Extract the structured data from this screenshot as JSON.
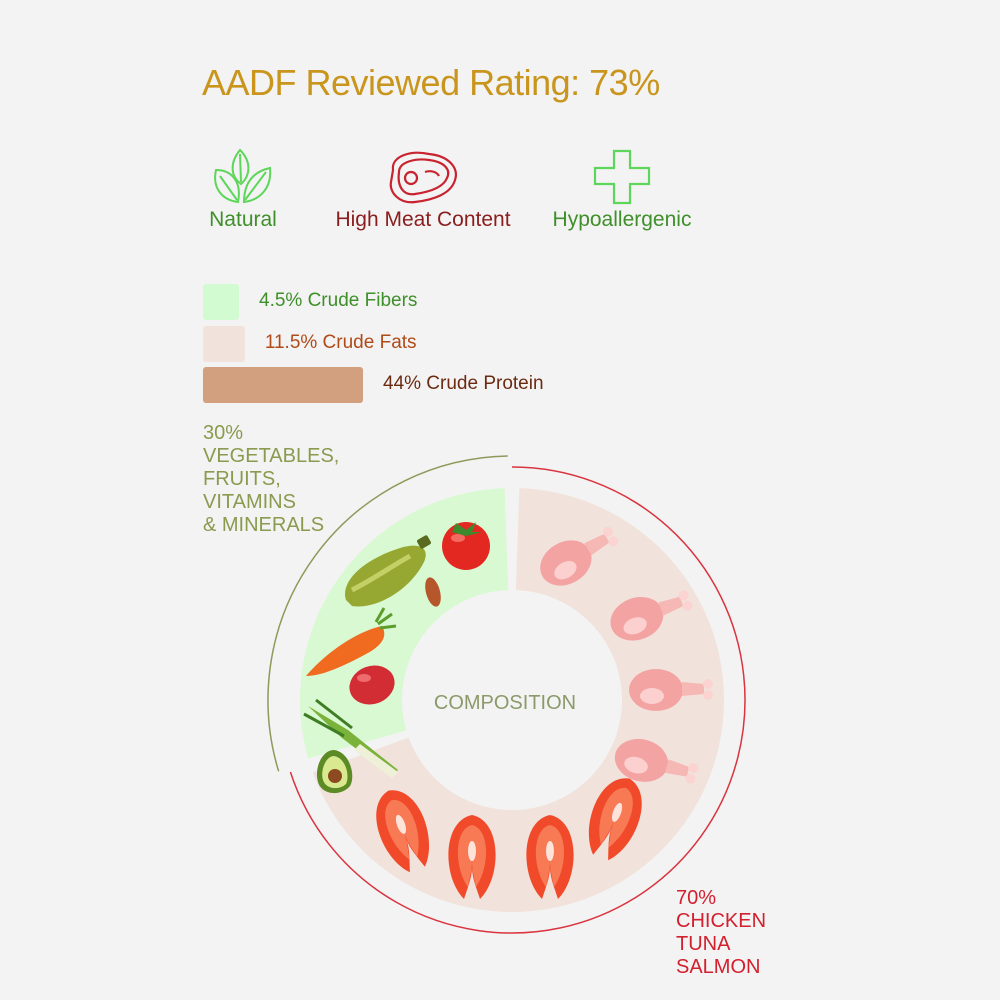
{
  "title": "AADF Reviewed Rating: 73%",
  "features": [
    {
      "label": "Natural",
      "icon": "leaves-icon",
      "color": "#3f8f2a"
    },
    {
      "label": "High Meat Content",
      "icon": "steak-icon",
      "color": "#8a1d1d"
    },
    {
      "label": "Hypoallergenic",
      "icon": "plus-cross-icon",
      "color": "#3f8f2a"
    }
  ],
  "nutrients": [
    {
      "label": "4.5% Crude Fibers",
      "value": 4.5,
      "color": "#d2fbd2",
      "text_color": "#3f8f2a"
    },
    {
      "label": "11.5% Crude Fats",
      "value": 11.5,
      "color": "#f2e2dc",
      "text_color": "#b04a18"
    },
    {
      "label": "44% Crude Protein",
      "value": 44,
      "color": "#d2a07e",
      "text_color": "#6b2b12"
    }
  ],
  "composition_center": "COMPOSITION",
  "veg_label": [
    "30%",
    "VEGETABLES,",
    "FRUITS,",
    "VITAMINS",
    "& MINERALS"
  ],
  "meat_label": [
    "70%",
    "CHICKEN",
    "TUNA",
    "SALMON"
  ],
  "chart_data": {
    "type": "pie",
    "categories": [
      "VEGETABLES, FRUITS, VITAMINS & MINERALS",
      "CHICKEN TUNA SALMON"
    ],
    "values": [
      30,
      70
    ],
    "colors": [
      "#d9f9d2",
      "#f1e2dc"
    ]
  }
}
